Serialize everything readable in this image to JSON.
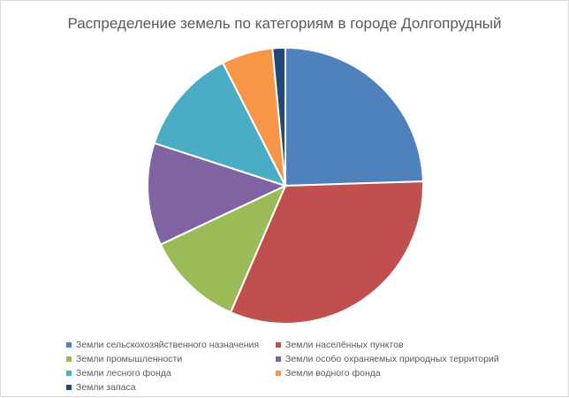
{
  "chart_data": {
    "type": "pie",
    "title": "Распределение земель по категориям в городе Долгопрудный",
    "legend_position": "bottom",
    "categories": [
      "Земли сельскохозяйственного назначения",
      "Земли населённых пунктов",
      "Земли промышленности",
      "Земли особо охраняемых природных территорий",
      "Земли лесного фонда",
      "Земли водного фонда",
      "Земли запаса"
    ],
    "values": [
      24.5,
      32.0,
      11.5,
      12.0,
      12.5,
      6.0,
      1.5
    ],
    "colors": [
      "#4f81bd",
      "#c0504d",
      "#9bbb59",
      "#8064a2",
      "#4bacc6",
      "#f79646",
      "#1f497d"
    ]
  }
}
